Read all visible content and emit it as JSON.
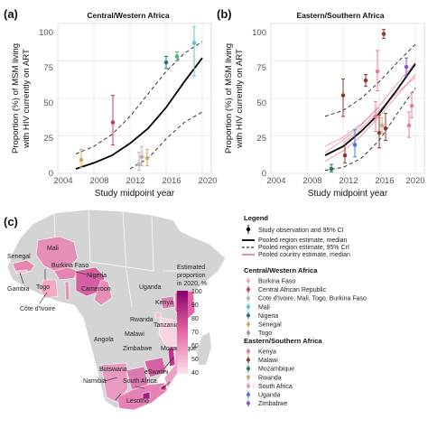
{
  "colors": {
    "pooled_region": "#000000",
    "pooled_country": "#e87fa0",
    "map_base": "#d4d4d4",
    "scale_low": "#fbe3ea",
    "scale_high": "#8c006c"
  },
  "chart_data": [
    {
      "type": "scatter",
      "panel_letter": "(a)",
      "title": "Central/Western Africa",
      "xlabel": "Study midpoint year",
      "ylabel_line1": "Proportion (%) of MSM living",
      "ylabel_line2": "with HIV currently on ART",
      "xlim": [
        2004,
        2021
      ],
      "ylim": [
        0,
        100
      ],
      "xticks": [
        "2004",
        "2008",
        "2012",
        "2016",
        "2020"
      ],
      "yticks": [
        "0",
        "25",
        "50",
        "75",
        "100"
      ],
      "grid": true,
      "points": [
        {
          "x": 2006.6,
          "y": 9,
          "lo": 4,
          "hi": 16,
          "country": "Senegal",
          "color": "#d9a657"
        },
        {
          "x": 2010.1,
          "y": 34,
          "lo": 19,
          "hi": 52,
          "country": "Central African Republic",
          "color": "#c8385e"
        },
        {
          "x": 2013.0,
          "y": 6,
          "lo": 2,
          "hi": 14,
          "country": "Côte d'Ivoire, Mali, Togo, Burkina Faso",
          "color": "#b6b6b6"
        },
        {
          "x": 2013.3,
          "y": 11,
          "lo": 5,
          "hi": 18,
          "country": "Togo",
          "color": "#cfa2aa"
        },
        {
          "x": 2013.9,
          "y": 10,
          "lo": 5,
          "hi": 16,
          "country": "Senegal",
          "color": "#d9a657"
        },
        {
          "x": 2016.0,
          "y": 74,
          "lo": 70,
          "hi": 78,
          "country": "Nigeria",
          "color": "#2a6f8e"
        },
        {
          "x": 2017.2,
          "y": 78,
          "lo": 75,
          "hi": 81,
          "country": "Mali",
          "color": "#52b56a"
        },
        {
          "x": 2019.1,
          "y": 87,
          "lo": 65,
          "hi": 98,
          "country": "Côte d'Ivoire",
          "color": "#5bc3d6"
        }
      ],
      "median": [
        [
          2006,
          3
        ],
        [
          2008,
          7
        ],
        [
          2010,
          12
        ],
        [
          2012,
          20
        ],
        [
          2014,
          30
        ],
        [
          2016,
          44
        ],
        [
          2018,
          61
        ],
        [
          2020,
          77
        ]
      ],
      "cri_upper": [
        [
          2006,
          13
        ],
        [
          2008,
          18
        ],
        [
          2010,
          26
        ],
        [
          2012,
          38
        ],
        [
          2014,
          53
        ],
        [
          2016,
          68
        ],
        [
          2018,
          80
        ],
        [
          2020,
          88
        ]
      ],
      "cri_lower": [
        [
          2012,
          3
        ],
        [
          2014,
          10
        ],
        [
          2016,
          23
        ],
        [
          2018,
          34
        ],
        [
          2020,
          41
        ]
      ]
    },
    {
      "type": "scatter",
      "panel_letter": "(b)",
      "title": "Eastern/Southern Africa",
      "xlabel": "Study midpoint year",
      "ylabel_line1": "Proportion (%) of MSM living",
      "ylabel_line2": "with HIV currently on ART",
      "xlim": [
        2004,
        2021
      ],
      "ylim": [
        0,
        100
      ],
      "xticks": [
        "2004",
        "2008",
        "2012",
        "2016",
        "2020"
      ],
      "yticks": [
        "0",
        "25",
        "50",
        "75",
        "100"
      ],
      "grid": true,
      "points": [
        {
          "x": 2010.7,
          "y": 3,
          "lo": 1,
          "hi": 6,
          "country": "Mozambique",
          "color": "#1f7a5a"
        },
        {
          "x": 2012.0,
          "y": 52,
          "lo": 38,
          "hi": 63,
          "country": "Malawi",
          "color": "#8b3a2b"
        },
        {
          "x": 2012.2,
          "y": 12,
          "lo": 7,
          "hi": 19,
          "country": "Malawi",
          "color": "#8b3a2b"
        },
        {
          "x": 2013.3,
          "y": 19,
          "lo": 11,
          "hi": 29,
          "country": "Uganda",
          "color": "#3a7bd5"
        },
        {
          "x": 2014.5,
          "y": 62,
          "lo": 58,
          "hi": 66,
          "country": "Malawi",
          "color": "#8b3a2b"
        },
        {
          "x": 2015.6,
          "y": 38,
          "lo": 28,
          "hi": 48,
          "country": "Kenya",
          "color": "#e87f91"
        },
        {
          "x": 2015.8,
          "y": 68,
          "lo": 55,
          "hi": 82,
          "country": "Kenya",
          "color": "#e87f91"
        },
        {
          "x": 2016.0,
          "y": 27,
          "lo": 17,
          "hi": 39,
          "country": "Malawi",
          "color": "#8b3a2b"
        },
        {
          "x": 2016.3,
          "y": 32,
          "lo": 27,
          "hi": 37,
          "country": "Rwanda",
          "color": "#d2a679"
        },
        {
          "x": 2016.5,
          "y": 93,
          "lo": 90,
          "hi": 96,
          "country": "Malawi",
          "color": "#8b3a2b"
        },
        {
          "x": 2016.7,
          "y": 30,
          "lo": 22,
          "hi": 40,
          "country": "Malawi",
          "color": "#8b3a2b"
        },
        {
          "x": 2019.0,
          "y": 71,
          "lo": 65,
          "hi": 77,
          "country": "Zimbabwe",
          "color": "#8c4fd8"
        },
        {
          "x": 2019.3,
          "y": 32,
          "lo": 24,
          "hi": 41,
          "country": "Kenya",
          "color": "#e87f91"
        },
        {
          "x": 2019.6,
          "y": 45,
          "lo": 37,
          "hi": 54,
          "country": "Kenya",
          "color": "#e87f91"
        }
      ],
      "median": [
        [
          2010,
          12
        ],
        [
          2012,
          18
        ],
        [
          2014,
          28
        ],
        [
          2016,
          40
        ],
        [
          2018,
          56
        ],
        [
          2020,
          73
        ]
      ],
      "cri_upper": [
        [
          2010,
          38
        ],
        [
          2012,
          42
        ],
        [
          2014,
          50
        ],
        [
          2016,
          61
        ],
        [
          2018,
          74
        ],
        [
          2020,
          86
        ]
      ],
      "cri_lower": [
        [
          2010,
          2
        ],
        [
          2012,
          4
        ],
        [
          2014,
          10
        ],
        [
          2016,
          22
        ],
        [
          2018,
          40
        ],
        [
          2020,
          57
        ]
      ],
      "pooled_country": [
        [
          [
            2010,
            14
          ],
          [
            2012,
            22
          ],
          [
            2014,
            32
          ],
          [
            2016,
            45
          ],
          [
            2018,
            60
          ],
          [
            2020,
            74
          ]
        ],
        [
          [
            2010,
            8
          ],
          [
            2012,
            15
          ],
          [
            2014,
            25
          ],
          [
            2016,
            38
          ],
          [
            2018,
            52
          ],
          [
            2020,
            66
          ]
        ],
        [
          [
            2012,
            20
          ],
          [
            2014,
            30
          ],
          [
            2016,
            42
          ],
          [
            2018,
            54
          ],
          [
            2020,
            64
          ]
        ],
        [
          [
            2010,
            18
          ],
          [
            2012,
            24
          ],
          [
            2014,
            33
          ],
          [
            2016,
            44
          ]
        ]
      ]
    }
  ],
  "map": {
    "panel_letter": "(c)",
    "colorbar_title": [
      "Estimated",
      "proportion",
      "in 2020, %"
    ],
    "colorbar_ticks": [
      "100",
      "90",
      "80",
      "70",
      "60",
      "50",
      "40"
    ],
    "labels": {
      "mali": "Mali",
      "senegal": "Senegal",
      "burkina": "Burkina Faso",
      "gambia": "Gambia",
      "nigeria": "Nigeria",
      "togo": "Togo",
      "cameroon": "Cameroon",
      "cote": "Côte d'Ivoire",
      "uganda": "Uganda",
      "kenya": "Kenya",
      "rwanda": "Rwanda",
      "tanzania": "Tanzania",
      "angola": "Angola",
      "malawi": "Malawi",
      "zimbabwe": "Zimbabwe",
      "mozambique": "Mozambique",
      "botswana": "Botswana",
      "eswatini": "eSwatini",
      "namibia": "Namibia",
      "south_africa": "South Africa",
      "lesotho": "Lesotho"
    }
  },
  "legend": {
    "title": "Legend",
    "items": [
      "Study observation and 95% CI",
      "Pooled region estimate, median",
      "Pooled region estimate, 95% CrI",
      "Pooled country estimate, median"
    ],
    "cw_title": "Central/Western Africa",
    "cw_items": [
      {
        "label": "Burkina Faso",
        "color": "#f2a7b4"
      },
      {
        "label": "Central African Republic",
        "color": "#c8385e"
      },
      {
        "label": "Cote d'Ivoire, Mali, Togo, Burkina Faso",
        "color": "#b6b6b6"
      },
      {
        "label": "Mali",
        "color": "#5bc3d6"
      },
      {
        "label": "Nigeria",
        "color": "#2a6f8e"
      },
      {
        "label": "Senegal",
        "color": "#d9a657"
      },
      {
        "label": "Togo",
        "color": "#9e9e9e"
      }
    ],
    "es_title": "Eastern/Southern Africa",
    "es_items": [
      {
        "label": "Kenya",
        "color": "#e87f91"
      },
      {
        "label": "Malawi",
        "color": "#8b3a2b"
      },
      {
        "label": "Mozambique",
        "color": "#1f7a5a"
      },
      {
        "label": "Rwanda",
        "color": "#d2a679"
      },
      {
        "label": "South Africa",
        "color": "#e39aa7"
      },
      {
        "label": "Uganda",
        "color": "#3a7bd5"
      },
      {
        "label": "Zimbabwe",
        "color": "#8c4fd8"
      }
    ]
  }
}
